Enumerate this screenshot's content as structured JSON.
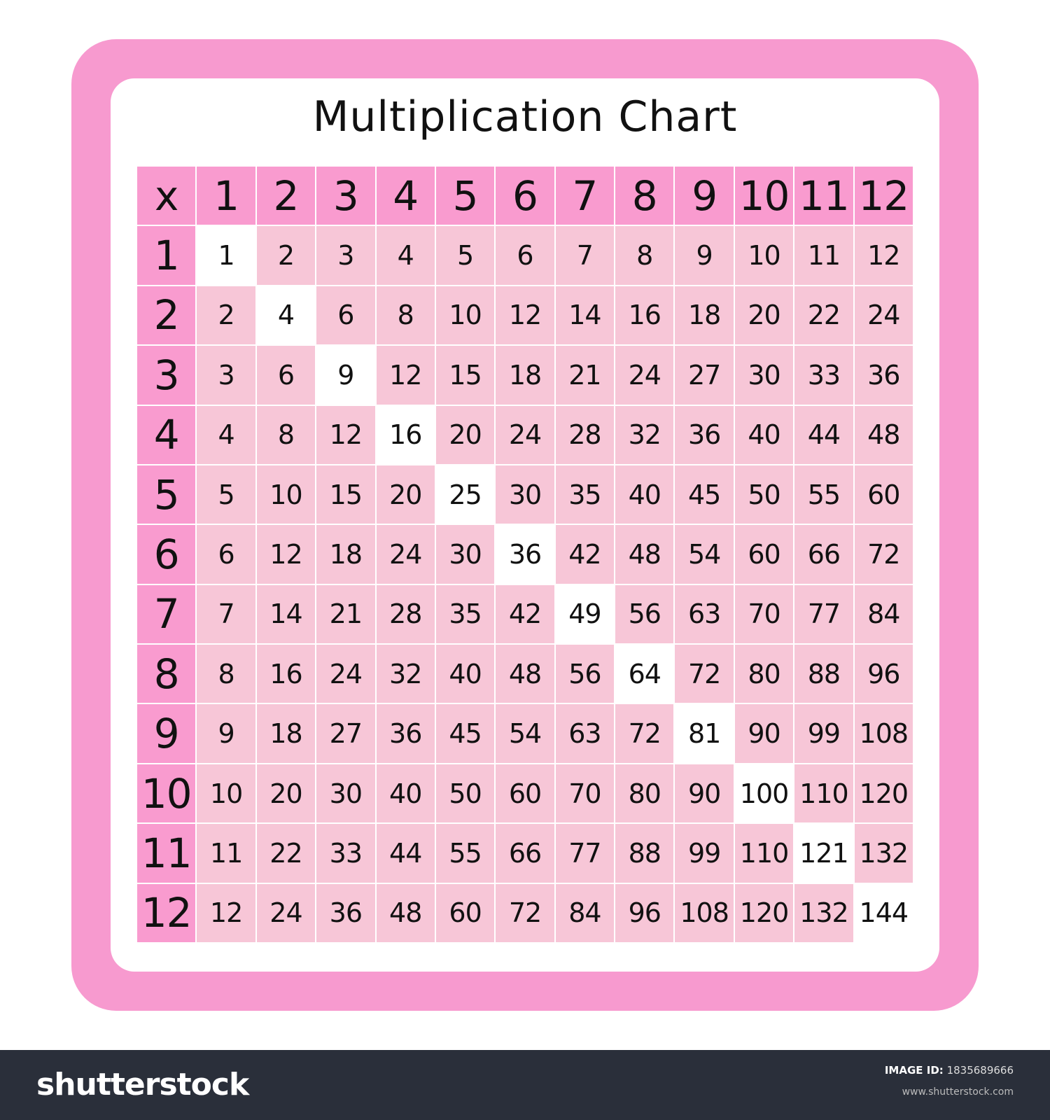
{
  "chart_data": {
    "type": "table",
    "title": "Multiplication Chart",
    "corner_label": "x",
    "column_headers": [
      "1",
      "2",
      "3",
      "4",
      "5",
      "6",
      "7",
      "8",
      "9",
      "10",
      "11",
      "12"
    ],
    "row_headers": [
      "1",
      "2",
      "3",
      "4",
      "5",
      "6",
      "7",
      "8",
      "9",
      "10",
      "11",
      "12"
    ],
    "rows": [
      [
        1,
        2,
        3,
        4,
        5,
        6,
        7,
        8,
        9,
        10,
        11,
        12
      ],
      [
        2,
        4,
        6,
        8,
        10,
        12,
        14,
        16,
        18,
        20,
        22,
        24
      ],
      [
        3,
        6,
        9,
        12,
        15,
        18,
        21,
        24,
        27,
        30,
        33,
        36
      ],
      [
        4,
        8,
        12,
        16,
        20,
        24,
        28,
        32,
        36,
        40,
        44,
        48
      ],
      [
        5,
        10,
        15,
        20,
        25,
        30,
        35,
        40,
        45,
        50,
        55,
        60
      ],
      [
        6,
        12,
        18,
        24,
        30,
        36,
        42,
        48,
        54,
        60,
        66,
        72
      ],
      [
        7,
        14,
        21,
        28,
        35,
        42,
        49,
        56,
        63,
        70,
        77,
        84
      ],
      [
        8,
        16,
        24,
        32,
        40,
        48,
        56,
        64,
        72,
        80,
        88,
        96
      ],
      [
        9,
        18,
        27,
        36,
        45,
        54,
        63,
        72,
        81,
        90,
        99,
        108
      ],
      [
        10,
        20,
        30,
        40,
        50,
        60,
        70,
        80,
        90,
        100,
        110,
        120
      ],
      [
        11,
        22,
        33,
        44,
        55,
        66,
        77,
        88,
        99,
        110,
        121,
        132
      ],
      [
        12,
        24,
        36,
        48,
        60,
        72,
        84,
        96,
        108,
        120,
        132,
        144
      ]
    ],
    "colors": {
      "frame": "#F79ACF",
      "header": "#F99BCF",
      "cell": "#F7C6D7",
      "diagonal": "#FFFFFF"
    }
  },
  "footer": {
    "logo": "shutterstock",
    "image_id_label": "IMAGE ID:",
    "image_id": "1835689666",
    "url": "www.shutterstock.com"
  }
}
